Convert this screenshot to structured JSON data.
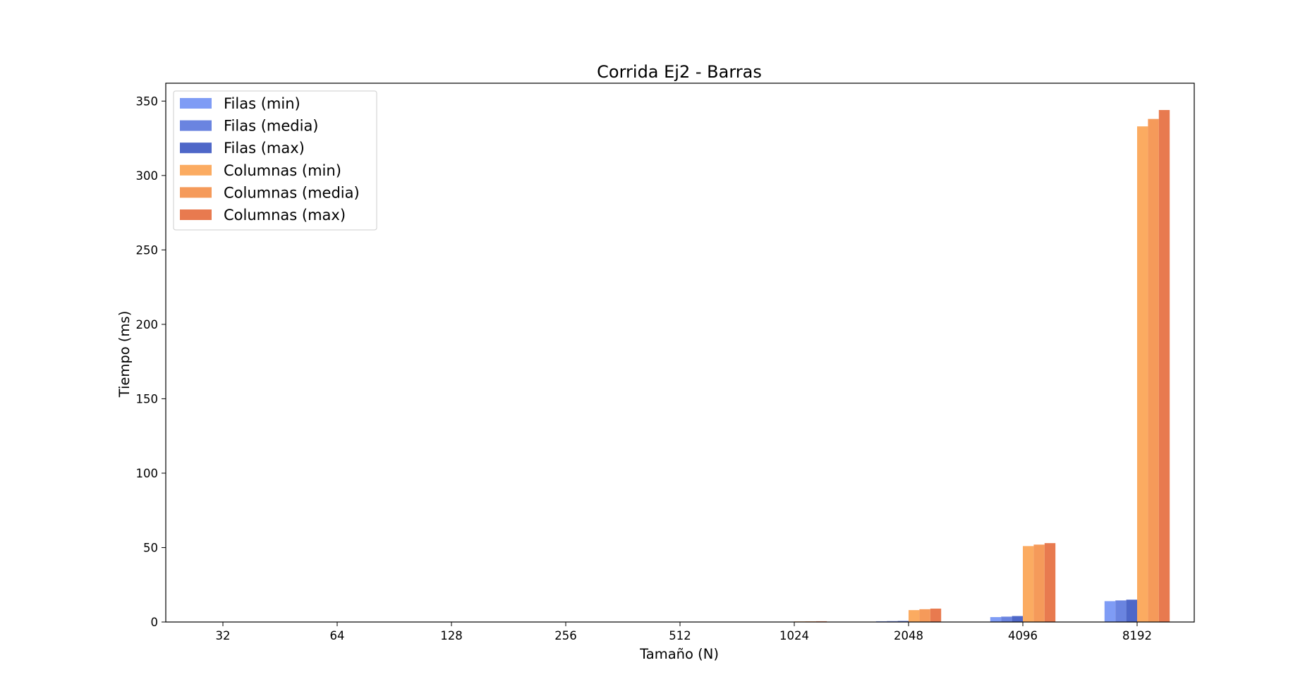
{
  "chart_data": {
    "type": "bar",
    "title": "Corrida Ej2 - Barras",
    "xlabel": "Tamaño (N)",
    "ylabel": "Tiempo (ms)",
    "categories": [
      "32",
      "64",
      "128",
      "256",
      "512",
      "1024",
      "2048",
      "4096",
      "8192"
    ],
    "ylim": [
      0,
      362
    ],
    "yticks": [
      "0",
      "50",
      "100",
      "150",
      "200",
      "250",
      "300",
      "350"
    ],
    "legend_position": "top-left",
    "grid": false,
    "series": [
      {
        "name": "Filas (min)",
        "color": "#7f9cf5",
        "values": [
          0,
          0,
          0,
          0,
          0.01,
          0.1,
          0.5,
          3.3,
          14
        ]
      },
      {
        "name": "Filas (media)",
        "color": "#6a84e0",
        "values": [
          0,
          0,
          0,
          0,
          0.02,
          0.12,
          0.6,
          3.6,
          14.5
        ]
      },
      {
        "name": "Filas (max)",
        "color": "#4e67c8",
        "values": [
          0,
          0,
          0,
          0,
          0.03,
          0.15,
          0.7,
          4,
          15
        ]
      },
      {
        "name": "Columnas (min)",
        "color": "#fbab61",
        "values": [
          0,
          0,
          0,
          0,
          0.05,
          0.4,
          8,
          51,
          333
        ]
      },
      {
        "name": "Columnas (media)",
        "color": "#f59a5a",
        "values": [
          0,
          0,
          0,
          0,
          0.06,
          0.45,
          8.6,
          52,
          338
        ]
      },
      {
        "name": "Columnas (max)",
        "color": "#e87a4f",
        "values": [
          0,
          0,
          0,
          0,
          0.07,
          0.5,
          9,
          53,
          344
        ]
      }
    ]
  }
}
